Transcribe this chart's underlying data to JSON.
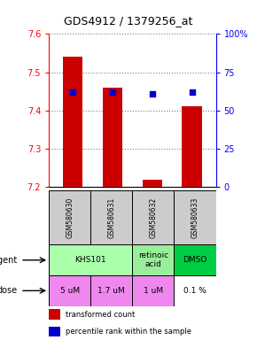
{
  "title": "GDS4912 / 1379256_at",
  "samples": [
    "GSM580630",
    "GSM580631",
    "GSM580632",
    "GSM580633"
  ],
  "bar_values": [
    7.54,
    7.46,
    7.22,
    7.41
  ],
  "dot_values": [
    62,
    62,
    61,
    62
  ],
  "ylim_left": [
    7.2,
    7.6
  ],
  "ylim_right": [
    0,
    100
  ],
  "yticks_left": [
    7.2,
    7.3,
    7.4,
    7.5,
    7.6
  ],
  "yticks_right": [
    0,
    25,
    50,
    75,
    100
  ],
  "bar_color": "#cc0000",
  "dot_color": "#0000cc",
  "bar_width": 0.5,
  "agent_groups": [
    {
      "c0": 0,
      "c1": 1,
      "label": "KHS101",
      "color": "#aaffaa"
    },
    {
      "c0": 2,
      "c2": 2,
      "label": "retinoic\nacid",
      "color": "#99ee99"
    },
    {
      "c0": 3,
      "c1": 3,
      "label": "DMSO",
      "color": "#00cc44"
    }
  ],
  "dose_labels": [
    "5 uM",
    "1.7 uM",
    "1 uM",
    "0.1 %"
  ],
  "dose_colors": [
    "#ee88ee",
    "#ee88ee",
    "#ffffff",
    "#ffffff"
  ],
  "sample_bg": "#cccccc",
  "legend_bar_label": "transformed count",
  "legend_dot_label": "percentile rank within the sample"
}
